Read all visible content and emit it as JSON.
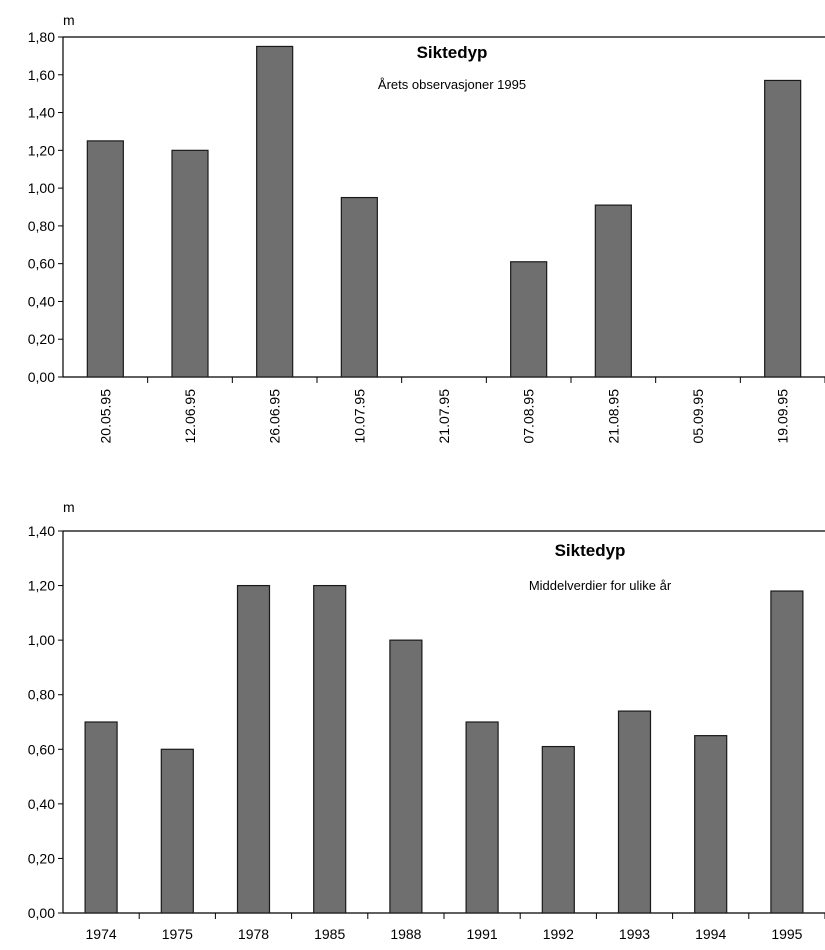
{
  "chart_data": [
    {
      "type": "bar",
      "title": "Siktedyp",
      "subtitle": "Årets observasjoner 1995",
      "ylabel": "m",
      "xlabel": "",
      "ylim": [
        0,
        1.8
      ],
      "y_ticks": [
        "0,00",
        "0,20",
        "0,40",
        "0,60",
        "0,80",
        "1,00",
        "1,20",
        "1,40",
        "1,60",
        "1,80"
      ],
      "categories": [
        "20.05.95",
        "12.06.95",
        "26.06.95",
        "10.07.95",
        "21.07.95",
        "07.08.95",
        "21.08.95",
        "05.09.95",
        "19.09.95"
      ],
      "values": [
        1.25,
        1.2,
        1.75,
        0.95,
        0,
        0.61,
        0.91,
        0,
        1.57
      ],
      "grid": false,
      "bar_color": "#6f6f6f"
    },
    {
      "type": "bar",
      "title": "Siktedyp",
      "subtitle": "Middelverdier for ulike år",
      "ylabel": "m",
      "xlabel": "",
      "ylim": [
        0,
        1.4
      ],
      "y_ticks": [
        "0,00",
        "0,20",
        "0,40",
        "0,60",
        "0,80",
        "1,00",
        "1,20",
        "1,40"
      ],
      "categories": [
        "1974",
        "1975",
        "1978",
        "1985",
        "1988",
        "1991",
        "1992",
        "1993",
        "1994",
        "1995"
      ],
      "values": [
        0.7,
        0.6,
        1.2,
        1.2,
        1.0,
        0.7,
        0.61,
        0.74,
        0.65,
        1.18
      ],
      "grid": false,
      "bar_color": "#6f6f6f"
    }
  ]
}
